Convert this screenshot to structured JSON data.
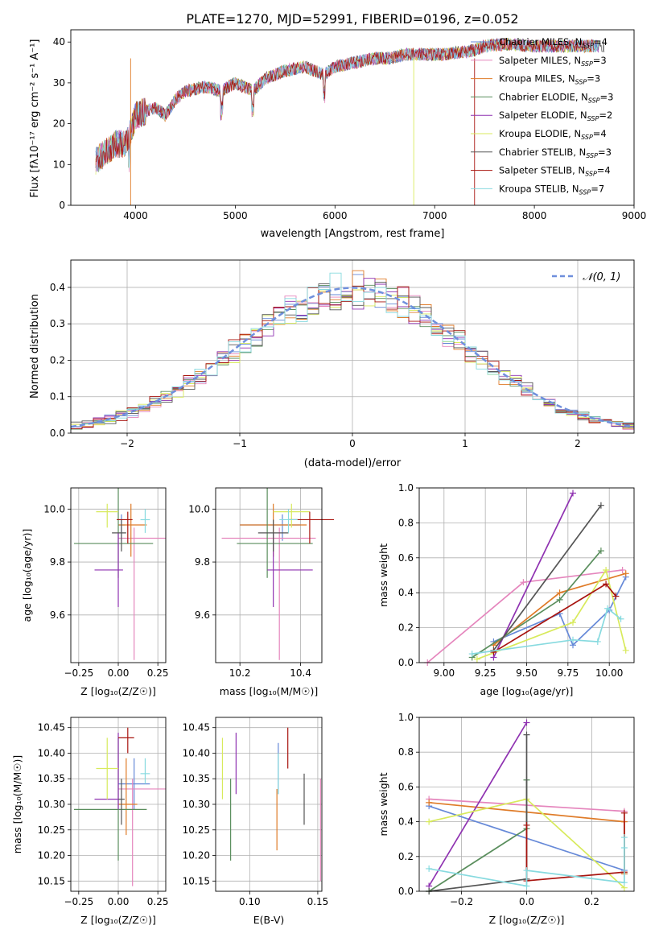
{
  "colors": {
    "palette": [
      "#6689d8",
      "#e586bd",
      "#df7b28",
      "#5a8e5d",
      "#8f32b1",
      "#d8ea5c",
      "#555555",
      "#a8140f",
      "#87dadf"
    ],
    "normal_curve": "#6f8fdc",
    "grid": "#b0b0b0"
  },
  "chart_data": [
    {
      "type": "line",
      "id": "spectrum",
      "title": "PLATE=1270, MJD=52991, FIBERID=0196, z=0.052",
      "xlabel": "wavelength [Angstrom, rest frame]",
      "ylabel": "Flux [fλ10⁻¹⁷ erg cm⁻² s⁻¹ A⁻¹]",
      "xlim": [
        3350,
        9000
      ],
      "ylim": [
        0,
        43
      ],
      "xticks": [
        "4000",
        "5000",
        "6000",
        "7000",
        "8000",
        "9000"
      ],
      "yticks": [
        "0",
        "10",
        "20",
        "30",
        "40"
      ],
      "legend": "top-right",
      "spectrum_knots": [
        [
          3600,
          11
        ],
        [
          3700,
          13
        ],
        [
          3800,
          15
        ],
        [
          3900,
          15
        ],
        [
          3950,
          18
        ],
        [
          4000,
          22
        ],
        [
          4100,
          23
        ],
        [
          4200,
          24
        ],
        [
          4300,
          22
        ],
        [
          4400,
          26
        ],
        [
          4500,
          28
        ],
        [
          4700,
          29
        ],
        [
          4860,
          28
        ],
        [
          5000,
          30
        ],
        [
          5175,
          28
        ],
        [
          5300,
          31
        ],
        [
          5500,
          33
        ],
        [
          5700,
          34
        ],
        [
          5890,
          32
        ],
        [
          6000,
          34
        ],
        [
          6200,
          35
        ],
        [
          6400,
          36
        ],
        [
          6563,
          36
        ],
        [
          6700,
          37
        ],
        [
          6900,
          37
        ],
        [
          7100,
          37
        ],
        [
          7400,
          38
        ],
        [
          7500,
          39
        ],
        [
          7700,
          39.5
        ],
        [
          8000,
          39
        ],
        [
          8300,
          39
        ],
        [
          8500,
          39
        ],
        [
          8700,
          39
        ]
      ],
      "series": [
        {
          "name": "Chabrier MILES, N_SSP=4",
          "label_main": "Chabrier MILES, N",
          "label_sub": "SSP",
          "label_end": "=4"
        },
        {
          "name": "Salpeter MILES, N_SSP=3",
          "label_main": "Salpeter MILES, N",
          "label_sub": "SSP",
          "label_end": "=3"
        },
        {
          "name": "Kroupa MILES, N_SSP=3",
          "label_main": "Kroupa MILES, N",
          "label_sub": "SSP",
          "label_end": "=3"
        },
        {
          "name": "Chabrier ELODIE, N_SSP=3",
          "label_main": "Chabrier ELODIE, N",
          "label_sub": "SSP",
          "label_end": "=3"
        },
        {
          "name": "Salpeter ELODIE, N_SSP=2",
          "label_main": "Salpeter ELODIE, N",
          "label_sub": "SSP",
          "label_end": "=2"
        },
        {
          "name": "Kroupa ELODIE, N_SSP=4",
          "label_main": "Kroupa ELODIE, N",
          "label_sub": "SSP",
          "label_end": "=4"
        },
        {
          "name": "Chabrier STELIB, N_SSP=3",
          "label_main": "Chabrier STELIB, N",
          "label_sub": "SSP",
          "label_end": "=3"
        },
        {
          "name": "Salpeter STELIB, N_SSP=4",
          "label_main": "Salpeter STELIB, N",
          "label_sub": "SSP",
          "label_end": "=4"
        },
        {
          "name": "Kroupa STELIB, N_SSP=7",
          "label_main": "Kroupa STELIB, N",
          "label_sub": "SSP",
          "label_end": "=7"
        }
      ]
    },
    {
      "type": "histogram",
      "id": "residuals",
      "xlabel": "(data-model)/error",
      "ylabel": "Normed distribution",
      "xlim": [
        -2.5,
        2.5
      ],
      "ylim": [
        0,
        0.475
      ],
      "xticks": [
        "−2",
        "−1",
        "0",
        "1",
        "2"
      ],
      "yticks": [
        "0.0",
        "0.1",
        "0.2",
        "0.3",
        "0.4"
      ],
      "bin_width": 0.1,
      "legend": "top-right",
      "reference_curve": "N(0,1)"
    },
    {
      "type": "errorbar",
      "id": "age-vs-Z",
      "xlabel": "Z [log₁₀(Z/Z☉)]",
      "ylabel": "age  [log₁₀(age/yr)]",
      "xlim": [
        -0.3,
        0.3
      ],
      "ylim": [
        9.42,
        10.08
      ],
      "xticks": [
        "−0.25",
        "0.00",
        "0.25"
      ],
      "yticks": [
        "9.6",
        "9.8",
        "10.0"
      ],
      "points": [
        {
          "x": 0.02,
          "y": 9.94,
          "xerr": [
            0.02,
            0.02
          ],
          "yerr": [
            0.06,
            0.04
          ]
        },
        {
          "x": 0.1,
          "y": 9.89,
          "xerr": [
            0.1,
            0.2
          ],
          "yerr": [
            0.46,
            0.04
          ]
        },
        {
          "x": 0.08,
          "y": 9.94,
          "xerr": [
            0.08,
            0.1
          ],
          "yerr": [
            0.12,
            0.08
          ]
        },
        {
          "x": 0.0,
          "y": 9.87,
          "xerr": [
            0.28,
            0.22
          ],
          "yerr": [
            0.13,
            0.21
          ]
        },
        {
          "x": 0.0,
          "y": 9.77,
          "xerr": [
            0.15,
            0.03
          ],
          "yerr": [
            0.14,
            0.14
          ]
        },
        {
          "x": -0.07,
          "y": 9.99,
          "xerr": [
            0.07,
            0.07
          ],
          "yerr": [
            0.06,
            0.03
          ]
        },
        {
          "x": 0.02,
          "y": 9.91,
          "xerr": [
            0.06,
            0.03
          ],
          "yerr": [
            0.07,
            0.05
          ]
        },
        {
          "x": 0.06,
          "y": 9.96,
          "xerr": [
            0.07,
            0.03
          ],
          "yerr": [
            0.09,
            0.03
          ]
        },
        {
          "x": 0.17,
          "y": 9.96,
          "xerr": [
            0.03,
            0.03
          ],
          "yerr": [
            0.05,
            0.04
          ]
        }
      ]
    },
    {
      "type": "errorbar",
      "id": "age-vs-mass",
      "xlabel": "mass [log₁₀(M/M☉)]",
      "xlim": [
        10.12,
        10.47
      ],
      "ylim": [
        9.42,
        10.08
      ],
      "xticks": [
        "10.2",
        "10.4"
      ],
      "yticks": [
        "9.6",
        "9.8",
        "10.0"
      ],
      "points": [
        {
          "x": 10.34,
          "y": 9.94,
          "xerr": [
            0.14,
            0.06
          ],
          "yerr": [
            0.06,
            0.04
          ]
        },
        {
          "x": 10.33,
          "y": 9.89,
          "xerr": [
            0.19,
            0.12
          ],
          "yerr": [
            0.46,
            0.04
          ]
        },
        {
          "x": 10.31,
          "y": 9.94,
          "xerr": [
            0.11,
            0.11
          ],
          "yerr": [
            0.12,
            0.08
          ]
        },
        {
          "x": 10.29,
          "y": 9.87,
          "xerr": [
            0.1,
            0.15
          ],
          "yerr": [
            0.13,
            0.21
          ]
        },
        {
          "x": 10.31,
          "y": 9.77,
          "xerr": [
            0.02,
            0.13
          ],
          "yerr": [
            0.14,
            0.14
          ]
        },
        {
          "x": 10.37,
          "y": 9.99,
          "xerr": [
            0.06,
            0.06
          ],
          "yerr": [
            0.06,
            0.03
          ]
        },
        {
          "x": 10.31,
          "y": 9.91,
          "xerr": [
            0.05,
            0.05
          ],
          "yerr": [
            0.07,
            0.05
          ]
        },
        {
          "x": 10.43,
          "y": 9.96,
          "xerr": [
            0.07,
            0.08
          ],
          "yerr": [
            0.09,
            0.03
          ]
        },
        {
          "x": 10.36,
          "y": 9.96,
          "xerr": [
            0.03,
            0.03
          ],
          "yerr": [
            0.05,
            0.04
          ]
        }
      ]
    },
    {
      "type": "line",
      "id": "weight-vs-age",
      "xlabel": "age  [log₁₀(age/yr)]",
      "ylabel": "mass weight",
      "xlim": [
        8.85,
        10.15
      ],
      "ylim": [
        0,
        1
      ],
      "xticks": [
        "9.00",
        "9.25",
        "9.50",
        "9.75",
        "10.00"
      ],
      "yticks": [
        "0.0",
        "0.2",
        "0.4",
        "0.6",
        "0.8",
        "1.0"
      ],
      "series": [
        {
          "x": [
            9.3,
            9.7,
            9.78,
            10.0,
            10.1
          ],
          "y": [
            0.12,
            0.28,
            0.1,
            0.3,
            0.49
          ]
        },
        {
          "x": [
            8.9,
            9.48,
            10.08
          ],
          "y": [
            0.0,
            0.46,
            0.53
          ]
        },
        {
          "x": [
            9.3,
            9.7,
            10.1
          ],
          "y": [
            0.1,
            0.4,
            0.51
          ]
        },
        {
          "x": [
            9.17,
            9.7,
            9.95
          ],
          "y": [
            0.03,
            0.36,
            0.64
          ]
        },
        {
          "x": [
            9.3,
            9.78
          ],
          "y": [
            0.03,
            0.97
          ]
        },
        {
          "x": [
            9.2,
            9.78,
            9.98,
            10.1
          ],
          "y": [
            0.02,
            0.23,
            0.53,
            0.07
          ]
        },
        {
          "x": [
            9.3,
            9.95
          ],
          "y": [
            0.07,
            0.9
          ]
        },
        {
          "x": [
            9.3,
            9.98,
            10.04
          ],
          "y": [
            0.06,
            0.45,
            0.38
          ]
        },
        {
          "x": [
            9.17,
            9.78,
            9.93,
            9.99,
            10.07
          ],
          "y": [
            0.05,
            0.13,
            0.12,
            0.31,
            0.25
          ]
        }
      ]
    },
    {
      "type": "errorbar",
      "id": "mass-vs-Z",
      "xlabel": "Z [log₁₀(Z/Z☉)]",
      "ylabel": "mass [log₁₀(M/M☉)]",
      "xlim": [
        -0.3,
        0.3
      ],
      "ylim": [
        10.13,
        10.47
      ],
      "xticks": [
        "−0.25",
        "0.00",
        "0.25"
      ],
      "yticks": [
        "10.15",
        "10.20",
        "10.25",
        "10.30",
        "10.35",
        "10.40",
        "10.45"
      ],
      "points": [
        {
          "x": 0.1,
          "y": 10.34,
          "xerr": [
            0.1,
            0.1
          ],
          "yerr": [
            0.05,
            0.05
          ]
        },
        {
          "x": 0.09,
          "y": 10.33,
          "xerr": [
            0.09,
            0.21
          ],
          "yerr": [
            0.19,
            0.02
          ]
        },
        {
          "x": 0.05,
          "y": 10.3,
          "xerr": [
            0.05,
            0.07
          ],
          "yerr": [
            0.06,
            0.09
          ]
        },
        {
          "x": 0.0,
          "y": 10.29,
          "xerr": [
            0.28,
            0.18
          ],
          "yerr": [
            0.1,
            0.14
          ]
        },
        {
          "x": 0.0,
          "y": 10.31,
          "xerr": [
            0.15,
            0.0
          ],
          "yerr": [
            0.02,
            0.13
          ]
        },
        {
          "x": -0.07,
          "y": 10.37,
          "xerr": [
            0.07,
            0.07
          ],
          "yerr": [
            0.06,
            0.06
          ]
        },
        {
          "x": 0.02,
          "y": 10.31,
          "xerr": [
            0.02,
            0.02
          ],
          "yerr": [
            0.05,
            0.04
          ]
        },
        {
          "x": 0.06,
          "y": 10.43,
          "xerr": [
            0.06,
            0.04
          ],
          "yerr": [
            0.03,
            0.02
          ]
        },
        {
          "x": 0.17,
          "y": 10.36,
          "xerr": [
            0.03,
            0.03
          ],
          "yerr": [
            0.02,
            0.03
          ]
        }
      ]
    },
    {
      "type": "errorbar",
      "id": "mass-vs-ebv",
      "xlabel": "E(B-V)",
      "xlim": [
        0.075,
        0.153
      ],
      "ylim": [
        10.13,
        10.47
      ],
      "xticks": [
        "0.10",
        "0.15"
      ],
      "yticks": [
        "10.15",
        "10.20",
        "10.25",
        "10.30",
        "10.35",
        "10.40",
        "10.45"
      ],
      "points": [
        {
          "x": 0.121,
          "y": 10.37,
          "xerr": [
            0,
            0
          ],
          "yerr": [
            0.05,
            0.05
          ]
        },
        {
          "x": 0.152,
          "y": 10.25,
          "xerr": [
            0,
            0
          ],
          "yerr": [
            0.1,
            0.1
          ]
        },
        {
          "x": 0.12,
          "y": 10.27,
          "xerr": [
            0,
            0
          ],
          "yerr": [
            0.06,
            0.06
          ]
        },
        {
          "x": 0.086,
          "y": 10.27,
          "xerr": [
            0,
            0
          ],
          "yerr": [
            0.08,
            0.08
          ]
        },
        {
          "x": 0.09,
          "y": 10.38,
          "xerr": [
            0,
            0
          ],
          "yerr": [
            0.06,
            0.06
          ]
        },
        {
          "x": 0.08,
          "y": 10.37,
          "xerr": [
            0,
            0
          ],
          "yerr": [
            0.06,
            0.06
          ]
        },
        {
          "x": 0.14,
          "y": 10.31,
          "xerr": [
            0,
            0
          ],
          "yerr": [
            0.05,
            0.05
          ]
        },
        {
          "x": 0.128,
          "y": 10.41,
          "xerr": [
            0,
            0
          ],
          "yerr": [
            0.04,
            0.04
          ]
        },
        {
          "x": 0.121,
          "y": 10.36,
          "xerr": [
            0,
            0
          ],
          "yerr": [
            0.04,
            0.04
          ]
        }
      ]
    },
    {
      "type": "line",
      "id": "weight-vs-Z",
      "xlabel": "Z [log₁₀(Z/Z☉)]",
      "ylabel": "mass weight",
      "xlim": [
        -0.33,
        0.33
      ],
      "ylim": [
        0,
        1
      ],
      "xticks": [
        "−0.2",
        "0.0",
        "0.2"
      ],
      "yticks": [
        "0.0",
        "0.2",
        "0.4",
        "0.6",
        "0.8",
        "1.0"
      ],
      "series": [
        {
          "x": [
            -0.3,
            0.3,
            0.3
          ],
          "y": [
            0.49,
            0.12,
            0.1
          ]
        },
        {
          "x": [
            -0.3,
            0.3
          ],
          "y": [
            0.53,
            0.46
          ]
        },
        {
          "x": [
            -0.3,
            0.3,
            0.3
          ],
          "y": [
            0.51,
            0.4,
            0.1
          ]
        },
        {
          "x": [
            -0.3,
            0.0,
            0.0
          ],
          "y": [
            0.0,
            0.36,
            0.64
          ]
        },
        {
          "x": [
            -0.3,
            0.0
          ],
          "y": [
            0.03,
            0.97
          ]
        },
        {
          "x": [
            -0.3,
            0.0,
            0.3
          ],
          "y": [
            0.4,
            0.53,
            0.02
          ]
        },
        {
          "x": [
            -0.3,
            0.0,
            0.0
          ],
          "y": [
            0.0,
            0.07,
            0.9
          ]
        },
        {
          "x": [
            0.0,
            0.0,
            0.3,
            0.3
          ],
          "y": [
            0.38,
            0.06,
            0.11,
            0.45
          ]
        },
        {
          "x": [
            -0.3,
            0.0,
            0.0,
            0.3,
            0.3,
            0.3
          ],
          "y": [
            0.13,
            0.03,
            0.12,
            0.05,
            0.25,
            0.31
          ]
        }
      ]
    }
  ]
}
